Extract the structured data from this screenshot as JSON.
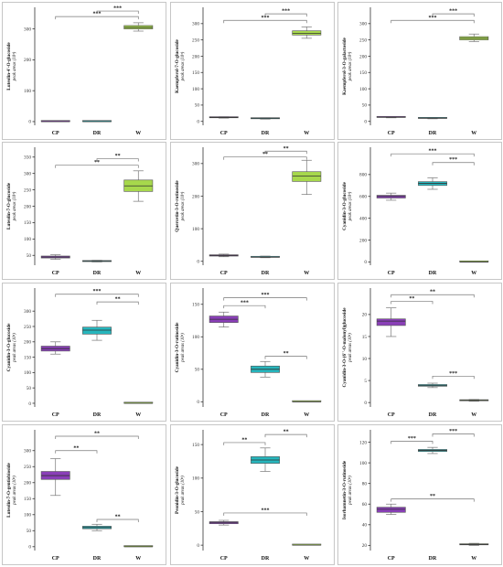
{
  "colors": {
    "CP": "#8a3fb8",
    "DR": "#27b6bd",
    "W": "#a7d84c"
  },
  "chart_data": [
    {
      "type": "box",
      "ylabel": "Luteolin-4'-O-glucoside",
      "ysub": "peak areas (10³)",
      "categories": [
        "CP",
        "DR",
        "W"
      ],
      "ylim": [
        -12,
        370
      ],
      "yticks": [
        0,
        100,
        200,
        300
      ],
      "boxes": [
        {
          "min": 0,
          "q1": 0,
          "median": 0,
          "q3": 0,
          "max": 0
        },
        {
          "min": 0,
          "q1": 0,
          "median": 0,
          "q3": 0,
          "max": 0
        },
        {
          "min": 293,
          "q1": 300,
          "median": 305,
          "q3": 311,
          "max": 320
        }
      ],
      "significance": [
        {
          "from": 0,
          "to": 2,
          "y": 340,
          "label": "***"
        },
        {
          "from": 1,
          "to": 2,
          "y": 358,
          "label": "***"
        }
      ]
    },
    {
      "type": "box",
      "ylabel": "Kaempferol-7-O-glucoside",
      "ysub": "peak areas (10³)",
      "categories": [
        "CP",
        "DR",
        "W"
      ],
      "ylim": [
        -12,
        350
      ],
      "yticks": [
        0,
        50,
        100,
        150,
        200,
        250,
        300
      ],
      "boxes": [
        {
          "min": 10,
          "q1": 11,
          "median": 12,
          "q3": 13,
          "max": 14
        },
        {
          "min": 7,
          "q1": 8,
          "median": 9,
          "q3": 10,
          "max": 11
        },
        {
          "min": 255,
          "q1": 265,
          "median": 270,
          "q3": 278,
          "max": 290
        }
      ],
      "significance": [
        {
          "from": 0,
          "to": 2,
          "y": 310,
          "label": "***"
        },
        {
          "from": 1,
          "to": 2,
          "y": 330,
          "label": "***"
        }
      ]
    },
    {
      "type": "box",
      "ylabel": "Kaempferol-3-O-galactoside",
      "ysub": "peak areas (10³)",
      "categories": [
        "CP",
        "DR",
        "W"
      ],
      "ylim": [
        -12,
        350
      ],
      "yticks": [
        0,
        50,
        100,
        150,
        200,
        250,
        300
      ],
      "boxes": [
        {
          "min": 11,
          "q1": 12,
          "median": 13,
          "q3": 14,
          "max": 15
        },
        {
          "min": 8,
          "q1": 9,
          "median": 10,
          "q3": 11,
          "max": 12
        },
        {
          "min": 245,
          "q1": 250,
          "median": 255,
          "q3": 260,
          "max": 268
        }
      ],
      "significance": [
        {
          "from": 0,
          "to": 2,
          "y": 310,
          "label": "***"
        },
        {
          "from": 1,
          "to": 2,
          "y": 330,
          "label": "***"
        }
      ]
    },
    {
      "type": "box",
      "ylabel": "Luteolin-7-O-glucoside",
      "ysub": "peak areas (10³)",
      "categories": [
        "CP",
        "DR",
        "W"
      ],
      "ylim": [
        20,
        380
      ],
      "yticks": [
        50,
        100,
        150,
        200,
        250,
        300,
        350
      ],
      "boxes": [
        {
          "min": 38,
          "q1": 42,
          "median": 45,
          "q3": 48,
          "max": 52
        },
        {
          "min": 30,
          "q1": 31,
          "median": 33,
          "q3": 34,
          "max": 35
        },
        {
          "min": 215,
          "q1": 245,
          "median": 262,
          "q3": 280,
          "max": 308
        }
      ],
      "significance": [
        {
          "from": 0,
          "to": 2,
          "y": 325,
          "label": "**"
        },
        {
          "from": 1,
          "to": 2,
          "y": 345,
          "label": "**"
        }
      ]
    },
    {
      "type": "box",
      "ylabel": "Quercetin-3-O-rutinoside",
      "ysub": "peak areas (10³)",
      "categories": [
        "CP",
        "DR",
        "W"
      ],
      "ylim": [
        -12,
        350
      ],
      "yticks": [
        0,
        100,
        200,
        300
      ],
      "boxes": [
        {
          "min": 14,
          "q1": 16,
          "median": 18,
          "q3": 20,
          "max": 22
        },
        {
          "min": 11,
          "q1": 12,
          "median": 13,
          "q3": 15,
          "max": 16
        },
        {
          "min": 205,
          "q1": 245,
          "median": 262,
          "q3": 275,
          "max": 310
        }
      ],
      "significance": [
        {
          "from": 0,
          "to": 2,
          "y": 320,
          "label": "**"
        },
        {
          "from": 1,
          "to": 2,
          "y": 338,
          "label": "**"
        }
      ]
    },
    {
      "type": "box",
      "ylabel": "Cyanidin-3-O-glucoside",
      "ysub": "peak areas (10³)",
      "categories": [
        "CP",
        "DR",
        "W"
      ],
      "ylim": [
        -30,
        1050
      ],
      "yticks": [
        0,
        200,
        400,
        600,
        800
      ],
      "boxes": [
        {
          "min": 565,
          "q1": 585,
          "median": 600,
          "q3": 610,
          "max": 630
        },
        {
          "min": 665,
          "q1": 700,
          "median": 720,
          "q3": 735,
          "max": 770
        },
        {
          "min": 0,
          "q1": 0,
          "median": 0,
          "q3": 0,
          "max": 0
        }
      ],
      "significance": [
        {
          "from": 0,
          "to": 2,
          "y": 990,
          "label": "***"
        },
        {
          "from": 1,
          "to": 2,
          "y": 910,
          "label": "***"
        }
      ]
    },
    {
      "type": "box",
      "ylabel": "Cyanidin-3-O-glucoside",
      "ysub": "peak areas (10³)",
      "categories": [
        "CP",
        "DR",
        "W"
      ],
      "ylim": [
        -12,
        375
      ],
      "yticks": [
        0,
        50,
        100,
        150,
        200,
        250,
        300
      ],
      "boxes": [
        {
          "min": 160,
          "q1": 170,
          "median": 178,
          "q3": 186,
          "max": 200
        },
        {
          "min": 205,
          "q1": 225,
          "median": 238,
          "q3": 248,
          "max": 270
        },
        {
          "min": 0,
          "q1": 0,
          "median": 0,
          "q3": 0,
          "max": 0
        }
      ],
      "significance": [
        {
          "from": 0,
          "to": 2,
          "y": 355,
          "label": "***"
        },
        {
          "from": 1,
          "to": 2,
          "y": 330,
          "label": "**"
        }
      ]
    },
    {
      "type": "box",
      "ylabel": "Cyanidin-3-O-rutinoside",
      "ysub": "peak areas (10³)",
      "categories": [
        "CP",
        "DR",
        "W"
      ],
      "ylim": [
        -8,
        175
      ],
      "yticks": [
        0,
        50,
        100,
        150
      ],
      "boxes": [
        {
          "min": 115,
          "q1": 122,
          "median": 127,
          "q3": 132,
          "max": 138
        },
        {
          "min": 38,
          "q1": 45,
          "median": 50,
          "q3": 55,
          "max": 62
        },
        {
          "min": 0,
          "q1": 0,
          "median": 0,
          "q3": 0,
          "max": 0
        }
      ],
      "significance": [
        {
          "from": 0,
          "to": 2,
          "y": 160,
          "label": "***"
        },
        {
          "from": 0,
          "to": 1,
          "y": 148,
          "label": "***"
        },
        {
          "from": 1,
          "to": 2,
          "y": 70,
          "label": "**"
        }
      ]
    },
    {
      "type": "box",
      "ylabel": "Cyanidin-3-O-(6''-O-malonyl)glucoside",
      "ysub": "peak areas (10³)",
      "categories": [
        "CP",
        "DR",
        "W"
      ],
      "ylim": [
        -1,
        26
      ],
      "yticks": [
        0,
        5,
        10,
        15,
        20
      ],
      "boxes": [
        {
          "min": 15,
          "q1": 17.5,
          "median": 18.5,
          "q3": 19,
          "max": 21.5
        },
        {
          "min": 3.4,
          "q1": 3.7,
          "median": 3.9,
          "q3": 4.1,
          "max": 4.4
        },
        {
          "min": 0.3,
          "q1": 0.4,
          "median": 0.5,
          "q3": 0.6,
          "max": 0.7
        }
      ],
      "significance": [
        {
          "from": 0,
          "to": 2,
          "y": 24.5,
          "label": "**"
        },
        {
          "from": 0,
          "to": 1,
          "y": 23,
          "label": "**"
        },
        {
          "from": 1,
          "to": 2,
          "y": 6,
          "label": "***"
        }
      ]
    },
    {
      "type": "box",
      "ylabel": "Luteolin-7-O-gentiobioside",
      "ysub": "peak areas (10³)",
      "categories": [
        "CP",
        "DR",
        "W"
      ],
      "ylim": [
        -12,
        365
      ],
      "yticks": [
        0,
        50,
        100,
        150,
        200,
        250,
        300
      ],
      "boxes": [
        {
          "min": 160,
          "q1": 210,
          "median": 222,
          "q3": 235,
          "max": 275
        },
        {
          "min": 50,
          "q1": 56,
          "median": 60,
          "q3": 64,
          "max": 70
        },
        {
          "min": 0,
          "q1": 0,
          "median": 0,
          "q3": 0,
          "max": 0
        }
      ],
      "significance": [
        {
          "from": 0,
          "to": 2,
          "y": 345,
          "label": "**"
        },
        {
          "from": 0,
          "to": 1,
          "y": 300,
          "label": "**"
        },
        {
          "from": 1,
          "to": 2,
          "y": 85,
          "label": "**"
        }
      ]
    },
    {
      "type": "box",
      "ylabel": "Peonidin-3-O-glucoside",
      "ysub": "peak areas (10³)",
      "categories": [
        "CP",
        "DR",
        "W"
      ],
      "ylim": [
        -8,
        172
      ],
      "yticks": [
        0,
        50,
        100,
        150
      ],
      "boxes": [
        {
          "min": 30,
          "q1": 32,
          "median": 34,
          "q3": 35,
          "max": 37
        },
        {
          "min": 110,
          "q1": 122,
          "median": 127,
          "q3": 132,
          "max": 145
        },
        {
          "min": 0,
          "q1": 0,
          "median": 0,
          "q3": 0,
          "max": 0
        }
      ],
      "significance": [
        {
          "from": 0,
          "to": 1,
          "y": 153,
          "label": "**"
        },
        {
          "from": 1,
          "to": 2,
          "y": 165,
          "label": "**"
        },
        {
          "from": 0,
          "to": 2,
          "y": 48,
          "label": "***"
        }
      ]
    },
    {
      "type": "box",
      "ylabel": "Isorhamnetin-3-O-rutinoside",
      "ysub": "peak areas (10³)",
      "categories": [
        "CP",
        "DR",
        "W"
      ],
      "ylim": [
        15,
        132
      ],
      "yticks": [
        20,
        40,
        60,
        80,
        100,
        120
      ],
      "boxes": [
        {
          "min": 50,
          "q1": 52,
          "median": 55,
          "q3": 57,
          "max": 60
        },
        {
          "min": 109,
          "q1": 111,
          "median": 112,
          "q3": 113,
          "max": 115
        },
        {
          "min": 20,
          "q1": 20.5,
          "median": 21,
          "q3": 21.5,
          "max": 22
        }
      ],
      "significance": [
        {
          "from": 0,
          "to": 1,
          "y": 121,
          "label": "***"
        },
        {
          "from": 1,
          "to": 2,
          "y": 128,
          "label": "***"
        },
        {
          "from": 0,
          "to": 2,
          "y": 65,
          "label": "**"
        }
      ]
    }
  ]
}
